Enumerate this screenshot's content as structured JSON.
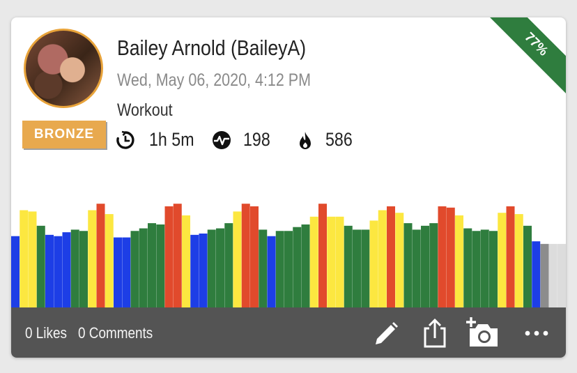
{
  "user": {
    "name": "Bailey Arnold (BaileyA)",
    "tier": "BRONZE"
  },
  "post": {
    "date": "Wed, May 06, 2020, 4:12 PM",
    "activity": "Workout",
    "effort_percent": "77%"
  },
  "stats": {
    "duration": "1h 5m",
    "effort_points": "198",
    "calories": "586"
  },
  "zone_colors": {
    "blue": "#1d3ee6",
    "green": "#2f7d3e",
    "yellow": "#fce740",
    "red": "#e14a2c",
    "gray": "#8c8c8c",
    "light_gray": "#dcdcdc"
  },
  "zone_bars": [
    {
      "z": "blue",
      "h": 0.55
    },
    {
      "z": "yellow",
      "h": 0.75
    },
    {
      "z": "yellow",
      "h": 0.74
    },
    {
      "z": "green",
      "h": 0.63
    },
    {
      "z": "blue",
      "h": 0.56
    },
    {
      "z": "blue",
      "h": 0.55
    },
    {
      "z": "blue",
      "h": 0.58
    },
    {
      "z": "green",
      "h": 0.6
    },
    {
      "z": "green",
      "h": 0.59
    },
    {
      "z": "yellow",
      "h": 0.75
    },
    {
      "z": "red",
      "h": 0.8
    },
    {
      "z": "yellow",
      "h": 0.72
    },
    {
      "z": "blue",
      "h": 0.54
    },
    {
      "z": "blue",
      "h": 0.54
    },
    {
      "z": "green",
      "h": 0.59
    },
    {
      "z": "green",
      "h": 0.61
    },
    {
      "z": "green",
      "h": 0.65
    },
    {
      "z": "green",
      "h": 0.64
    },
    {
      "z": "red",
      "h": 0.78
    },
    {
      "z": "red",
      "h": 0.8
    },
    {
      "z": "yellow",
      "h": 0.71
    },
    {
      "z": "blue",
      "h": 0.56
    },
    {
      "z": "blue",
      "h": 0.57
    },
    {
      "z": "green",
      "h": 0.6
    },
    {
      "z": "green",
      "h": 0.61
    },
    {
      "z": "green",
      "h": 0.65
    },
    {
      "z": "yellow",
      "h": 0.74
    },
    {
      "z": "red",
      "h": 0.8
    },
    {
      "z": "red",
      "h": 0.78
    },
    {
      "z": "green",
      "h": 0.6
    },
    {
      "z": "blue",
      "h": 0.55
    },
    {
      "z": "green",
      "h": 0.59
    },
    {
      "z": "green",
      "h": 0.59
    },
    {
      "z": "green",
      "h": 0.62
    },
    {
      "z": "green",
      "h": 0.64
    },
    {
      "z": "yellow",
      "h": 0.7
    },
    {
      "z": "red",
      "h": 0.8
    },
    {
      "z": "yellow",
      "h": 0.7
    },
    {
      "z": "yellow",
      "h": 0.7
    },
    {
      "z": "green",
      "h": 0.63
    },
    {
      "z": "green",
      "h": 0.6
    },
    {
      "z": "green",
      "h": 0.6
    },
    {
      "z": "yellow",
      "h": 0.67
    },
    {
      "z": "yellow",
      "h": 0.75
    },
    {
      "z": "red",
      "h": 0.78
    },
    {
      "z": "yellow",
      "h": 0.73
    },
    {
      "z": "green",
      "h": 0.65
    },
    {
      "z": "green",
      "h": 0.6
    },
    {
      "z": "green",
      "h": 0.63
    },
    {
      "z": "green",
      "h": 0.65
    },
    {
      "z": "red",
      "h": 0.78
    },
    {
      "z": "red",
      "h": 0.77
    },
    {
      "z": "yellow",
      "h": 0.71
    },
    {
      "z": "green",
      "h": 0.61
    },
    {
      "z": "green",
      "h": 0.59
    },
    {
      "z": "green",
      "h": 0.6
    },
    {
      "z": "green",
      "h": 0.59
    },
    {
      "z": "yellow",
      "h": 0.73
    },
    {
      "z": "red",
      "h": 0.78
    },
    {
      "z": "yellow",
      "h": 0.72
    },
    {
      "z": "green",
      "h": 0.63
    },
    {
      "z": "blue",
      "h": 0.51
    },
    {
      "z": "gray",
      "h": 0.49
    },
    {
      "z": "light_gray",
      "h": 0.49
    },
    {
      "z": "light_gray",
      "h": 0.49
    }
  ],
  "footer": {
    "likes": "0 Likes",
    "comments": "0 Comments"
  },
  "icons": {
    "duration": "timer-icon",
    "effort": "heart-rate-icon",
    "calories": "flame-icon",
    "edit": "pencil-icon",
    "share": "share-icon",
    "photo": "add-photo-icon",
    "more": "more-dots-icon"
  }
}
